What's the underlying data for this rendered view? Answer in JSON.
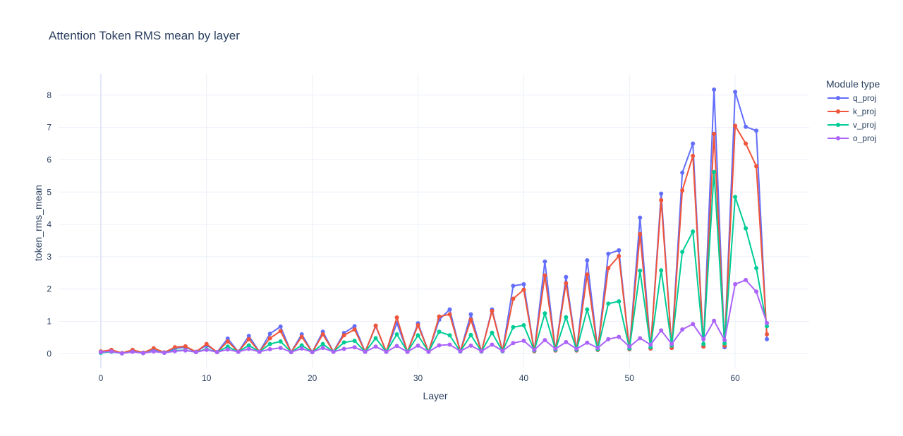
{
  "chart_data": {
    "type": "line",
    "title": "Attention Token RMS mean by layer",
    "xlabel": "Layer",
    "ylabel": "token_rms_mean",
    "xlim": [
      -4,
      67
    ],
    "ylim": [
      -0.45,
      8.65
    ],
    "x_ticks": [
      0,
      10,
      20,
      30,
      40,
      50,
      60
    ],
    "y_ticks": [
      0,
      1,
      2,
      3,
      4,
      5,
      6,
      7,
      8
    ],
    "grid": true,
    "legend": {
      "title": "Module type",
      "placement": "top-right"
    },
    "x": [
      0,
      1,
      2,
      3,
      4,
      5,
      6,
      7,
      8,
      9,
      10,
      11,
      12,
      13,
      14,
      15,
      16,
      17,
      18,
      19,
      20,
      21,
      22,
      23,
      24,
      25,
      26,
      27,
      28,
      29,
      30,
      31,
      32,
      33,
      34,
      35,
      36,
      37,
      38,
      39,
      40,
      41,
      42,
      43,
      44,
      45,
      46,
      47,
      48,
      49,
      50,
      51,
      52,
      53,
      54,
      55,
      56,
      57,
      58,
      59,
      60,
      61,
      62,
      63
    ],
    "series": [
      {
        "name": "q_proj",
        "color": "#636efa",
        "values": [
          0.06,
          0.1,
          0.02,
          0.1,
          0.03,
          0.14,
          0.04,
          0.16,
          0.2,
          0.06,
          0.26,
          0.05,
          0.47,
          0.06,
          0.55,
          0.06,
          0.62,
          0.84,
          0.05,
          0.6,
          0.05,
          0.68,
          0.06,
          0.64,
          0.85,
          0.06,
          0.85,
          0.06,
          0.95,
          0.06,
          0.94,
          0.06,
          1.05,
          1.37,
          0.07,
          1.22,
          0.07,
          1.37,
          0.08,
          2.1,
          2.15,
          0.08,
          2.85,
          0.1,
          2.37,
          0.1,
          2.89,
          0.12,
          3.09,
          3.2,
          0.14,
          4.21,
          0.16,
          4.95,
          0.18,
          5.6,
          6.5,
          0.22,
          8.17,
          0.2,
          8.1,
          7.02,
          6.9,
          0.45
        ]
      },
      {
        "name": "k_proj",
        "color": "#ef553b",
        "values": [
          0.07,
          0.12,
          0.02,
          0.12,
          0.03,
          0.17,
          0.04,
          0.2,
          0.23,
          0.06,
          0.3,
          0.05,
          0.38,
          0.06,
          0.45,
          0.06,
          0.48,
          0.7,
          0.05,
          0.52,
          0.05,
          0.6,
          0.06,
          0.57,
          0.75,
          0.06,
          0.87,
          0.06,
          1.12,
          0.06,
          0.88,
          0.06,
          1.15,
          1.22,
          0.07,
          1.05,
          0.07,
          1.32,
          0.08,
          1.7,
          1.98,
          0.08,
          2.42,
          0.1,
          2.18,
          0.1,
          2.45,
          0.12,
          2.65,
          3.02,
          0.14,
          3.7,
          0.16,
          4.75,
          0.18,
          5.05,
          6.12,
          0.22,
          6.8,
          0.25,
          7.05,
          6.5,
          5.8,
          0.6
        ]
      },
      {
        "name": "v_proj",
        "color": "#00cc96",
        "values": [
          0.03,
          0.06,
          0.01,
          0.06,
          0.02,
          0.08,
          0.03,
          0.1,
          0.11,
          0.05,
          0.14,
          0.05,
          0.22,
          0.06,
          0.26,
          0.06,
          0.3,
          0.38,
          0.05,
          0.26,
          0.05,
          0.3,
          0.06,
          0.35,
          0.4,
          0.06,
          0.48,
          0.06,
          0.6,
          0.06,
          0.57,
          0.06,
          0.68,
          0.57,
          0.07,
          0.58,
          0.07,
          0.65,
          0.08,
          0.82,
          0.88,
          0.1,
          1.25,
          0.12,
          1.13,
          0.12,
          1.37,
          0.14,
          1.55,
          1.62,
          0.16,
          2.57,
          0.2,
          2.58,
          0.25,
          3.15,
          3.78,
          0.3,
          5.62,
          0.32,
          4.85,
          3.88,
          2.65,
          0.85
        ]
      },
      {
        "name": "o_proj",
        "color": "#ab63fa",
        "values": [
          0.05,
          0.07,
          0.01,
          0.06,
          0.02,
          0.07,
          0.03,
          0.08,
          0.1,
          0.05,
          0.12,
          0.05,
          0.13,
          0.06,
          0.15,
          0.06,
          0.14,
          0.18,
          0.05,
          0.16,
          0.05,
          0.18,
          0.06,
          0.15,
          0.2,
          0.06,
          0.22,
          0.06,
          0.24,
          0.06,
          0.25,
          0.06,
          0.26,
          0.28,
          0.08,
          0.25,
          0.08,
          0.28,
          0.09,
          0.33,
          0.4,
          0.12,
          0.42,
          0.15,
          0.36,
          0.15,
          0.34,
          0.18,
          0.45,
          0.52,
          0.22,
          0.48,
          0.28,
          0.72,
          0.3,
          0.75,
          0.92,
          0.45,
          1.02,
          0.42,
          2.15,
          2.28,
          1.92,
          0.95
        ]
      }
    ]
  }
}
